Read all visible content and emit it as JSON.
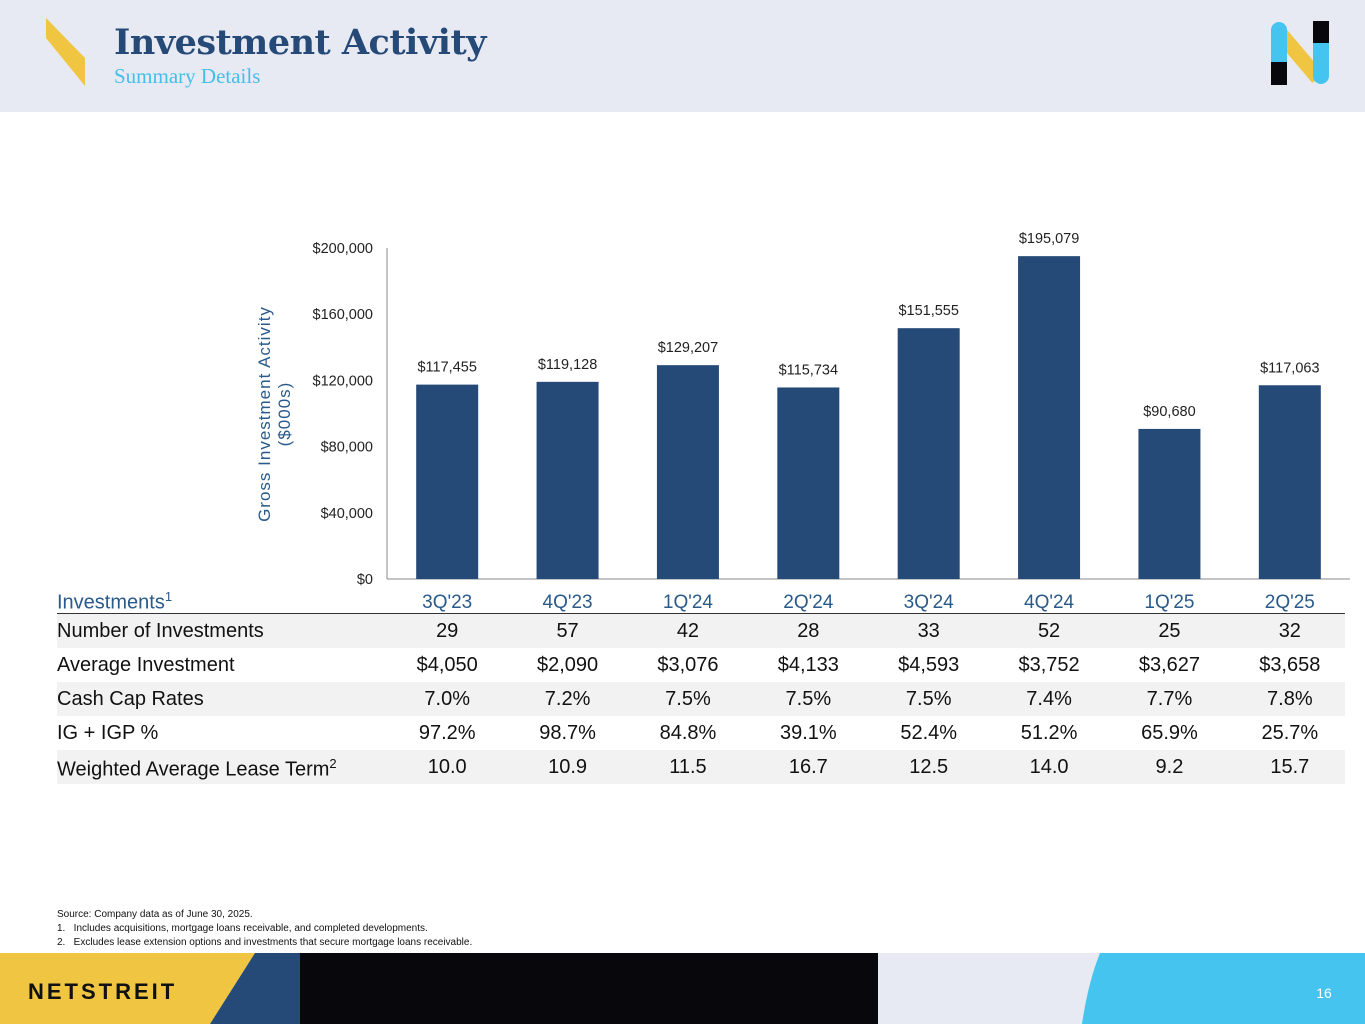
{
  "header": {
    "title": "Investment Activity",
    "subtitle": "Summary Details"
  },
  "colors": {
    "bar": "#264a77",
    "navy": "#264a77",
    "yellow": "#f0c541",
    "cyan": "#45c4f0",
    "black": "#08080c"
  },
  "chart_data": {
    "type": "bar",
    "title": "",
    "ylabel": "Gross Investment Activity ($000s)",
    "ylabel_lines": [
      "Gross Investment Activity",
      "($000s)"
    ],
    "xlabel": "",
    "categories": [
      "3Q'23",
      "4Q'23",
      "1Q'24",
      "2Q'24",
      "3Q'24",
      "4Q'24",
      "1Q'25",
      "2Q'25"
    ],
    "values": [
      117455,
      119128,
      129207,
      115734,
      151555,
      195079,
      90680,
      117063
    ],
    "data_labels": [
      "$117,455",
      "$119,128",
      "$129,207",
      "$115,734",
      "$151,555",
      "$195,079",
      "$90,680",
      "$117,063"
    ],
    "ylim": [
      0,
      200000
    ],
    "yticks": [
      0,
      40000,
      80000,
      120000,
      160000,
      200000
    ],
    "ytick_labels": [
      "$0",
      "$40,000",
      "$80,000",
      "$120,000",
      "$160,000",
      "$200,000"
    ],
    "grid": false
  },
  "table": {
    "header_label": "Investments",
    "header_sup": "1",
    "rows": [
      {
        "label": "Number of Investments",
        "sup": "",
        "values": [
          "29",
          "57",
          "42",
          "28",
          "33",
          "52",
          "25",
          "32"
        ]
      },
      {
        "label": "Average Investment",
        "sup": "",
        "values": [
          "$4,050",
          "$2,090",
          "$3,076",
          "$4,133",
          "$4,593",
          "$3,752",
          "$3,627",
          "$3,658"
        ]
      },
      {
        "label": "Cash Cap Rates",
        "sup": "",
        "values": [
          "7.0%",
          "7.2%",
          "7.5%",
          "7.5%",
          "7.5%",
          "7.4%",
          "7.7%",
          "7.8%"
        ]
      },
      {
        "label": "IG + IGP %",
        "sup": "",
        "values": [
          "97.2%",
          "98.7%",
          "84.8%",
          "39.1%",
          "52.4%",
          "51.2%",
          "65.9%",
          "25.7%"
        ]
      },
      {
        "label": "Weighted Average Lease Term",
        "sup": "2",
        "values": [
          "10.0",
          "10.9",
          "11.5",
          "16.7",
          "12.5",
          "14.0",
          "9.2",
          "15.7"
        ]
      }
    ]
  },
  "notes": [
    "Source: Company data as of June 30, 2025.",
    "1.   Includes acquisitions, mortgage loans receivable, and completed developments.",
    "2.   Excludes lease extension options and investments that secure mortgage loans receivable."
  ],
  "footer": {
    "brand": "NETSTREIT",
    "page": "16"
  }
}
